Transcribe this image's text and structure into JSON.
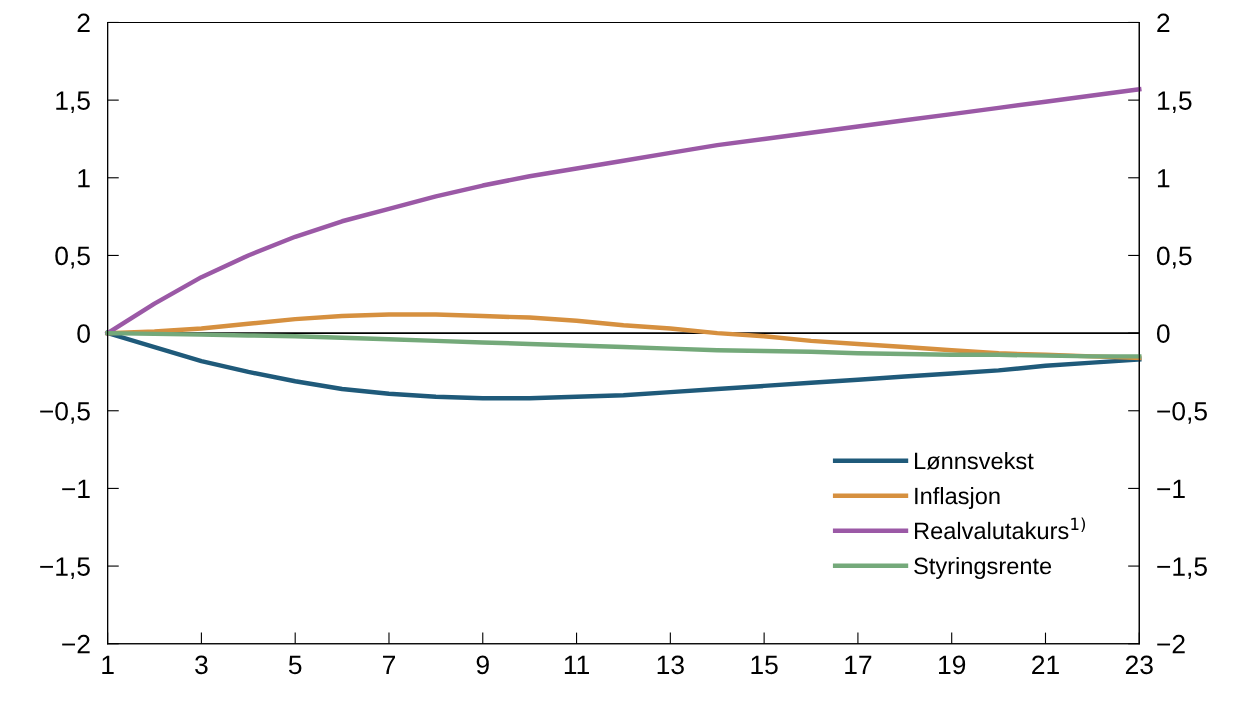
{
  "chart_data": {
    "type": "line",
    "x": [
      1,
      2,
      3,
      4,
      5,
      6,
      7,
      8,
      9,
      10,
      11,
      12,
      13,
      14,
      15,
      16,
      17,
      18,
      19,
      20,
      21,
      22,
      23
    ],
    "series": [
      {
        "name": "Lønnsvekst",
        "color": "#1f5a7a",
        "values": [
          0,
          -0.09,
          -0.18,
          -0.25,
          -0.31,
          -0.36,
          -0.39,
          -0.41,
          -0.42,
          -0.42,
          -0.41,
          -0.4,
          -0.38,
          -0.36,
          -0.34,
          -0.32,
          -0.3,
          -0.28,
          -0.26,
          -0.24,
          -0.21,
          -0.19,
          -0.17
        ]
      },
      {
        "name": "Inflasjon",
        "color": "#d6903f",
        "values": [
          0,
          0.01,
          0.03,
          0.06,
          0.09,
          0.11,
          0.12,
          0.12,
          0.11,
          0.1,
          0.08,
          0.05,
          0.03,
          0.0,
          -0.02,
          -0.05,
          -0.07,
          -0.09,
          -0.11,
          -0.13,
          -0.14,
          -0.15,
          -0.16
        ]
      },
      {
        "name": "Realvalutakurs$^{1)}$",
        "color": "#9b59a6",
        "values": [
          0,
          0.19,
          0.36,
          0.5,
          0.62,
          0.72,
          0.8,
          0.88,
          0.95,
          1.01,
          1.06,
          1.11,
          1.16,
          1.21,
          1.25,
          1.29,
          1.33,
          1.37,
          1.41,
          1.45,
          1.49,
          1.53,
          1.57
        ]
      },
      {
        "name": "Styringsrente",
        "color": "#74a97a",
        "values": [
          0,
          -0.005,
          -0.01,
          -0.015,
          -0.02,
          -0.03,
          -0.04,
          -0.05,
          -0.06,
          -0.07,
          -0.08,
          -0.09,
          -0.1,
          -0.11,
          -0.115,
          -0.12,
          -0.13,
          -0.135,
          -0.14,
          -0.14,
          -0.145,
          -0.15,
          -0.15
        ]
      }
    ],
    "xlim": [
      1,
      23
    ],
    "xticks": [
      1,
      3,
      5,
      7,
      9,
      11,
      13,
      15,
      17,
      19,
      21,
      23
    ],
    "ylim": [
      -2,
      2
    ],
    "yticks": [
      {
        "value": -2,
        "label": "−2"
      },
      {
        "value": -1.5,
        "label": "−1,5"
      },
      {
        "value": -1,
        "label": "−1"
      },
      {
        "value": -0.5,
        "label": "−0,5"
      },
      0,
      {
        "value": 0.5,
        "label": "0,5"
      },
      1,
      {
        "value": 1.5,
        "label": "1,5"
      },
      2
    ],
    "y2lim": [
      -2,
      2
    ],
    "y2ticks": [
      {
        "value": -2,
        "label": "−2"
      },
      {
        "value": -1.5,
        "label": "−1,5"
      },
      {
        "value": -1,
        "label": "−1"
      },
      {
        "value": -0.5,
        "label": "−0,5"
      },
      0,
      {
        "value": 0.5,
        "label": "0,5"
      },
      1,
      {
        "value": 1.5,
        "label": "1,5"
      },
      2
    ],
    "ref_lines": [
      {
        "axis": "y",
        "value": 0,
        "color": "#000000"
      }
    ],
    "legend": "bottom right",
    "grid": false,
    "marker": "none",
    "line_style": "solid"
  }
}
